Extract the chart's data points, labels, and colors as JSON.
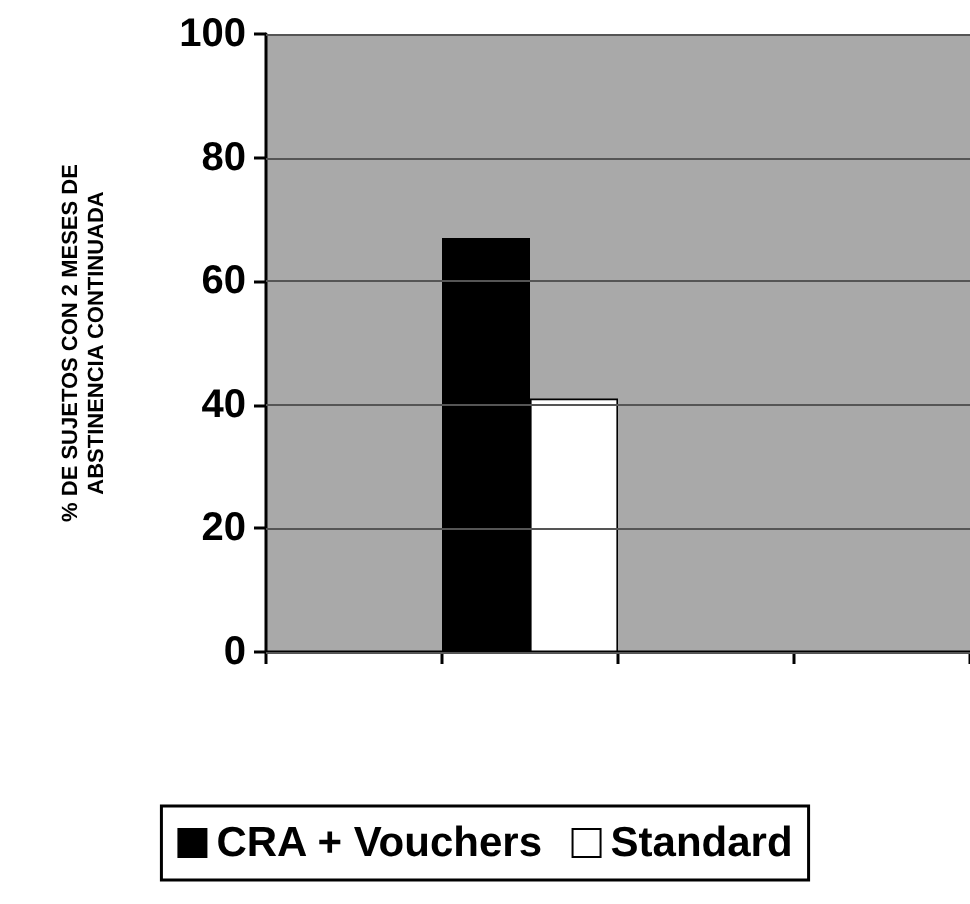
{
  "chart_data": {
    "type": "bar",
    "ylabel": "% DE SUJETOS CON 2 MESES DE\nABSTINENCIA CONTINUADA",
    "categories": [
      null,
      null,
      null,
      null
    ],
    "series": [
      {
        "name": "CRA + Vouchers",
        "color": "#000000",
        "values": [
          null,
          67,
          null,
          null
        ]
      },
      {
        "name": "Standard",
        "color": "#ffffff",
        "values": [
          null,
          41,
          null,
          null
        ]
      }
    ],
    "ylim": [
      0,
      100
    ],
    "yticks": [
      0,
      20,
      40,
      60,
      80,
      100
    ],
    "grid": "y",
    "legend": "bottom"
  }
}
